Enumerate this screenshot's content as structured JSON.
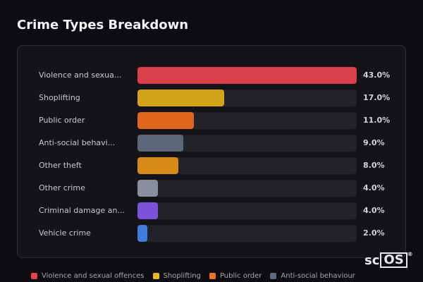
{
  "title": "Crime Types Breakdown",
  "chart_data": {
    "type": "bar",
    "orientation": "horizontal",
    "title": "Crime Types Breakdown",
    "xlim": [
      0,
      43
    ],
    "categories": [
      "Violence and sexua...",
      "Shoplifting",
      "Public order",
      "Anti-social behavi...",
      "Other theft",
      "Other crime",
      "Criminal damage an...",
      "Vehicle crime"
    ],
    "values": [
      43.0,
      17.0,
      11.0,
      9.0,
      8.0,
      4.0,
      4.0,
      2.0
    ],
    "value_labels": [
      "43.0%",
      "17.0%",
      "11.0%",
      "9.0%",
      "8.0%",
      "4.0%",
      "4.0%",
      "2.0%"
    ],
    "colors": [
      "#d9404a",
      "#d4a418",
      "#e0661e",
      "#5b6678",
      "#d88a18",
      "#8a8f9e",
      "#7b52d8",
      "#3f7ee0"
    ],
    "legend": [
      {
        "label": "Violence and sexual offences",
        "color": "#e0444e"
      },
      {
        "label": "Shoplifting",
        "color": "#e8b820"
      },
      {
        "label": "Public order",
        "color": "#ee7420"
      },
      {
        "label": "Anti-social behaviour",
        "color": "#5e6a7e"
      }
    ],
    "legend_position": "bottom",
    "grid": false
  },
  "logo": {
    "prefix": "sc",
    "boxed": "OS",
    "reg": "®"
  }
}
